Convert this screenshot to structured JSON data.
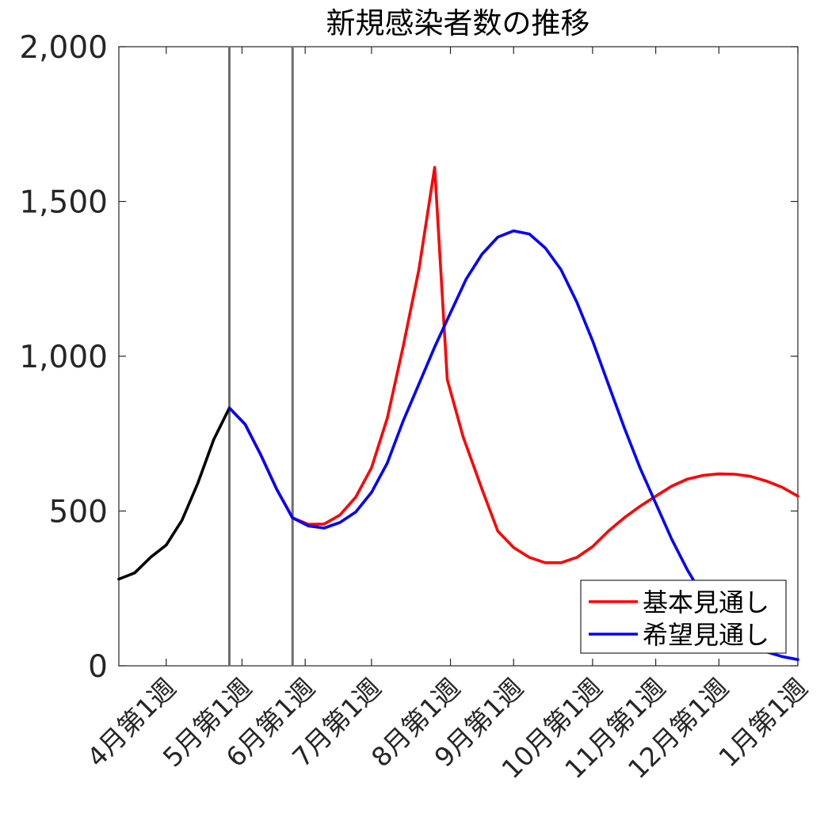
{
  "chart_data": {
    "type": "line",
    "title": "新規感染者数の推移",
    "xlabel": "",
    "ylabel": "",
    "ylim": [
      0,
      2000
    ],
    "xlim": [
      1,
      44
    ],
    "y_ticks": [
      {
        "value": 0,
        "label": "0"
      },
      {
        "value": 500,
        "label": "500"
      },
      {
        "value": 1000,
        "label": "1,000"
      },
      {
        "value": 1500,
        "label": "1,500"
      },
      {
        "value": 2000,
        "label": "2,000"
      }
    ],
    "x_ticks": [
      {
        "value": 4,
        "label": "4月第1週"
      },
      {
        "value": 8.8,
        "label": "5月第1週"
      },
      {
        "value": 12.8,
        "label": "6月第1週"
      },
      {
        "value": 17,
        "label": "7月第1週"
      },
      {
        "value": 22,
        "label": "8月第1週"
      },
      {
        "value": 26,
        "label": "9月第1週"
      },
      {
        "value": 31,
        "label": "10月第1週"
      },
      {
        "value": 35,
        "label": "11月第1週"
      },
      {
        "value": 39,
        "label": "12月第1週"
      },
      {
        "value": 44,
        "label": "1月第1週"
      }
    ],
    "vertical_lines": [
      8,
      12
    ],
    "series": [
      {
        "name": "",
        "color": "#000000",
        "x": [
          1,
          2,
          3,
          4,
          5,
          6,
          7,
          8
        ],
        "values": [
          280,
          300,
          350,
          390,
          470,
          590,
          730,
          833
        ]
      },
      {
        "name": "基本見通し",
        "color": "#ff0000",
        "x": [
          8,
          9,
          10,
          11,
          12,
          13,
          14,
          15,
          16,
          17,
          18,
          19,
          20,
          21,
          21.8,
          22.8,
          24,
          25,
          26,
          27,
          28,
          29,
          30,
          31,
          32,
          33,
          34,
          35,
          36,
          37,
          38,
          39,
          40,
          41,
          42,
          43,
          44
        ],
        "values": [
          833,
          780,
          680,
          570,
          478,
          457,
          458,
          487,
          545,
          640,
          800,
          1030,
          1280,
          1610,
          925,
          740,
          570,
          435,
          382,
          350,
          333,
          333,
          350,
          385,
          435,
          478,
          515,
          548,
          580,
          603,
          615,
          620,
          619,
          612,
          597,
          577,
          548
        ]
      },
      {
        "name": "希望見通し",
        "color": "#0000ff",
        "x": [
          8,
          9,
          10,
          11,
          12,
          13,
          14,
          15,
          16,
          17,
          18,
          19,
          20,
          21,
          22,
          23,
          24,
          25,
          26,
          27,
          28,
          29,
          30,
          31,
          32,
          33,
          34,
          35,
          36,
          37,
          38,
          39,
          40,
          41,
          42,
          43,
          44
        ],
        "values": [
          833,
          780,
          680,
          570,
          478,
          452,
          445,
          463,
          497,
          560,
          655,
          790,
          910,
          1030,
          1140,
          1250,
          1330,
          1385,
          1405,
          1395,
          1350,
          1280,
          1175,
          1050,
          910,
          770,
          640,
          525,
          410,
          310,
          225,
          150,
          95,
          65,
          45,
          30,
          20
        ]
      }
    ],
    "legend": {
      "placement": "bottom-right",
      "entries": [
        "基本見通し",
        "希望見通し"
      ]
    }
  }
}
